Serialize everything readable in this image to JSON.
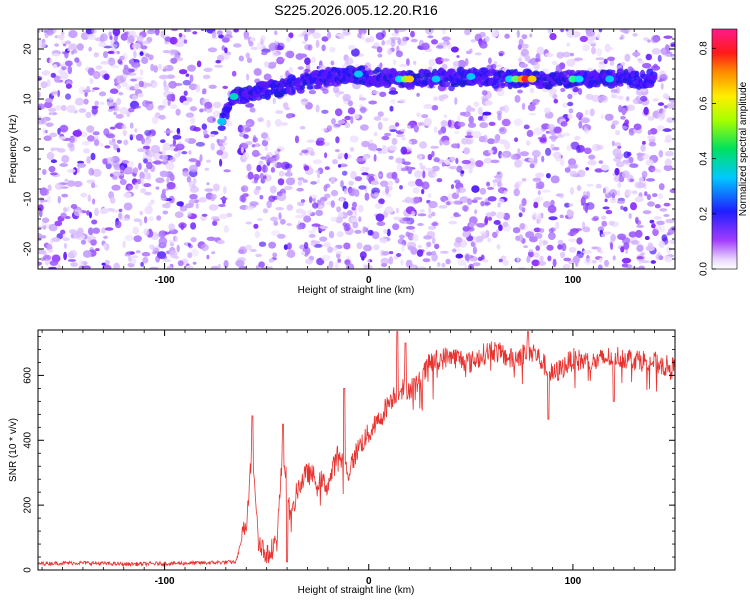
{
  "title": "S225.2026.005.12.20.R16",
  "chart_data": [
    {
      "type": "heatmap",
      "name": "spectrogram",
      "xlabel": "Height of straight line (km)",
      "ylabel": "Frequency (Hz)",
      "xlim": [
        -162,
        150
      ],
      "ylim": [
        -24,
        24
      ],
      "x_ticks": [
        -100,
        0,
        100
      ],
      "y_ticks": [
        -20,
        -10,
        0,
        10,
        20
      ],
      "colorbar": {
        "label": "Normalized spectral amplitude",
        "range": [
          0.0,
          0.87
        ],
        "ticks": [
          "0.0",
          "0.2",
          "0.4",
          "0.6",
          "0.8"
        ],
        "scale": "rainbow (purple to magenta)"
      },
      "background_noise": "light purple speckle across full range, gaps near x=-65, x=-35, x=70",
      "signal_track": {
        "points": [
          [
            -72,
            5.5
          ],
          [
            -66,
            10.5
          ],
          [
            -10,
            15
          ],
          [
            15,
            14
          ],
          [
            20,
            14
          ],
          [
            35,
            14
          ],
          [
            50,
            14.5
          ],
          [
            70,
            14
          ],
          [
            75,
            14
          ],
          [
            80,
            14
          ],
          [
            100,
            14
          ],
          [
            118,
            14
          ],
          [
            140,
            14
          ]
        ],
        "peak_x": 76,
        "peak_amplitude": 0.87
      },
      "grid": false
    },
    {
      "type": "line",
      "name": "snr",
      "xlabel": "Height of straight line (km)",
      "ylabel": "SNR (10 * v/v)",
      "xlim": [
        -162,
        150
      ],
      "ylim": [
        0,
        740
      ],
      "x_ticks": [
        -100,
        0,
        100
      ],
      "y_ticks": [
        0,
        200,
        400,
        600
      ],
      "color": "#e8322f",
      "grid": false,
      "envelope": [
        {
          "x": -162,
          "y": 20
        },
        {
          "x": -140,
          "y": 22
        },
        {
          "x": -120,
          "y": 18
        },
        {
          "x": -100,
          "y": 20
        },
        {
          "x": -80,
          "y": 22
        },
        {
          "x": -65,
          "y": 25
        },
        {
          "x": -60,
          "y": 150
        },
        {
          "x": -57,
          "y": 380
        },
        {
          "x": -54,
          "y": 100
        },
        {
          "x": -50,
          "y": 40
        },
        {
          "x": -45,
          "y": 90
        },
        {
          "x": -42,
          "y": 380
        },
        {
          "x": -38,
          "y": 150
        },
        {
          "x": -35,
          "y": 250
        },
        {
          "x": -30,
          "y": 300
        },
        {
          "x": -20,
          "y": 260
        },
        {
          "x": -15,
          "y": 360
        },
        {
          "x": -10,
          "y": 300
        },
        {
          "x": -5,
          "y": 380
        },
        {
          "x": 0,
          "y": 420
        },
        {
          "x": 5,
          "y": 460
        },
        {
          "x": 10,
          "y": 520
        },
        {
          "x": 15,
          "y": 560
        },
        {
          "x": 20,
          "y": 560
        },
        {
          "x": 25,
          "y": 580
        },
        {
          "x": 30,
          "y": 640
        },
        {
          "x": 40,
          "y": 660
        },
        {
          "x": 50,
          "y": 640
        },
        {
          "x": 60,
          "y": 680
        },
        {
          "x": 70,
          "y": 650
        },
        {
          "x": 80,
          "y": 680
        },
        {
          "x": 90,
          "y": 600
        },
        {
          "x": 100,
          "y": 650
        },
        {
          "x": 110,
          "y": 640
        },
        {
          "x": 120,
          "y": 660
        },
        {
          "x": 130,
          "y": 650
        },
        {
          "x": 140,
          "y": 640
        },
        {
          "x": 150,
          "y": 620
        }
      ],
      "spikes": [
        {
          "x": -57,
          "y": 475
        },
        {
          "x": -42,
          "y": 450
        },
        {
          "x": -40,
          "y": 25
        },
        {
          "x": -12,
          "y": 560
        },
        {
          "x": 14,
          "y": 735
        },
        {
          "x": 18,
          "y": 700
        },
        {
          "x": 78,
          "y": 735
        },
        {
          "x": 88,
          "y": 465
        },
        {
          "x": 120,
          "y": 520
        }
      ],
      "noise_amplitude": 35
    }
  ]
}
